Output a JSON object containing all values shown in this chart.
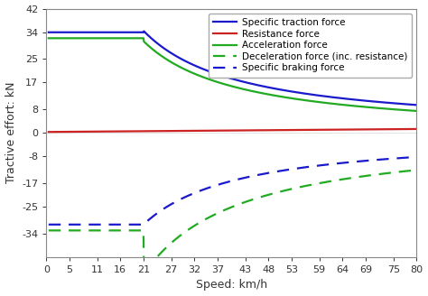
{
  "title": "",
  "xlabel": "Speed: km/h",
  "ylabel": "Tractive effort: kN",
  "xlim": [
    0,
    80
  ],
  "ylim": [
    -42,
    42
  ],
  "yticks": [
    -34,
    -25,
    -17,
    -8,
    0,
    8,
    17,
    25,
    34,
    42
  ],
  "xticks": [
    0,
    5,
    11,
    16,
    21,
    27,
    32,
    37,
    43,
    48,
    53,
    59,
    64,
    69,
    75,
    80
  ],
  "lines": {
    "specific_traction": {
      "label": "Specific traction force",
      "color": "#1a1acc",
      "linestyle": "solid",
      "linewidth": 1.6
    },
    "resistance": {
      "label": "Resistance force",
      "color": "#cc2222",
      "linestyle": "solid",
      "linewidth": 1.6
    },
    "acceleration": {
      "label": "Acceleration force",
      "color": "#22aa22",
      "linestyle": "solid",
      "linewidth": 1.6
    },
    "deceleration": {
      "label": "Deceleration force (inc. resistance)",
      "color": "#22aa22",
      "linestyle": "dashed",
      "linewidth": 1.6
    },
    "braking": {
      "label": "Specific braking force",
      "color": "#1a1acc",
      "linestyle": "dashed",
      "linewidth": 1.6
    }
  },
  "background_color": "#ffffff",
  "legend_fontsize": 7.5,
  "axis_fontsize": 9,
  "tick_fontsize": 8
}
